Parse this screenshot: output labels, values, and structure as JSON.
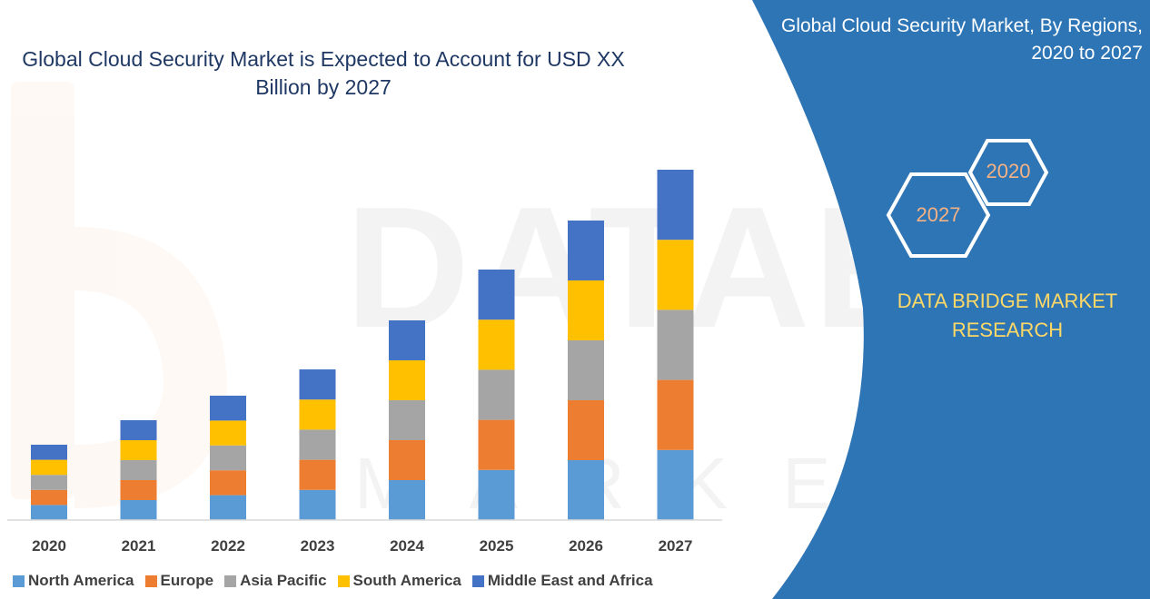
{
  "colors": {
    "north_america": "#5b9bd5",
    "europe": "#ed7d31",
    "asia_pacific": "#a5a5a5",
    "south_america": "#ffc000",
    "middle_east_africa": "#4472c4",
    "panel_blue": "#2e75b6",
    "brand_yellow": "#ffd966"
  },
  "chart_data": {
    "type": "bar",
    "stacked": true,
    "title": "Global Cloud Security Market is Expected to Account for USD XX Billion by 2027",
    "xlabel": "",
    "ylabel": "",
    "grid": false,
    "legend_position": "bottom",
    "categories": [
      "2020",
      "2021",
      "2022",
      "2023",
      "2024",
      "2025",
      "2026",
      "2027"
    ],
    "ylim": [
      0,
      100
    ],
    "series": [
      {
        "name": "North America",
        "values": [
          4.3,
          5.7,
          7.1,
          8.6,
          11.4,
          14.3,
          17.1,
          20.0
        ]
      },
      {
        "name": "Europe",
        "values": [
          4.3,
          5.7,
          7.1,
          8.6,
          11.4,
          14.3,
          17.1,
          20.0
        ]
      },
      {
        "name": "Asia Pacific",
        "values": [
          4.3,
          5.7,
          7.1,
          8.6,
          11.4,
          14.3,
          17.1,
          20.0
        ]
      },
      {
        "name": "South America",
        "values": [
          4.3,
          5.7,
          7.1,
          8.6,
          11.4,
          14.3,
          17.1,
          20.0
        ]
      },
      {
        "name": "Middle East and Africa",
        "values": [
          4.3,
          5.7,
          7.1,
          8.6,
          11.4,
          14.3,
          17.1,
          20.0
        ]
      }
    ]
  },
  "panel": {
    "title": "Global Cloud Security Market, By Regions, 2020 to 2027",
    "hex_back": "2020",
    "hex_front": "2027",
    "brand": "DATA BRIDGE MARKET RESEARCH"
  }
}
